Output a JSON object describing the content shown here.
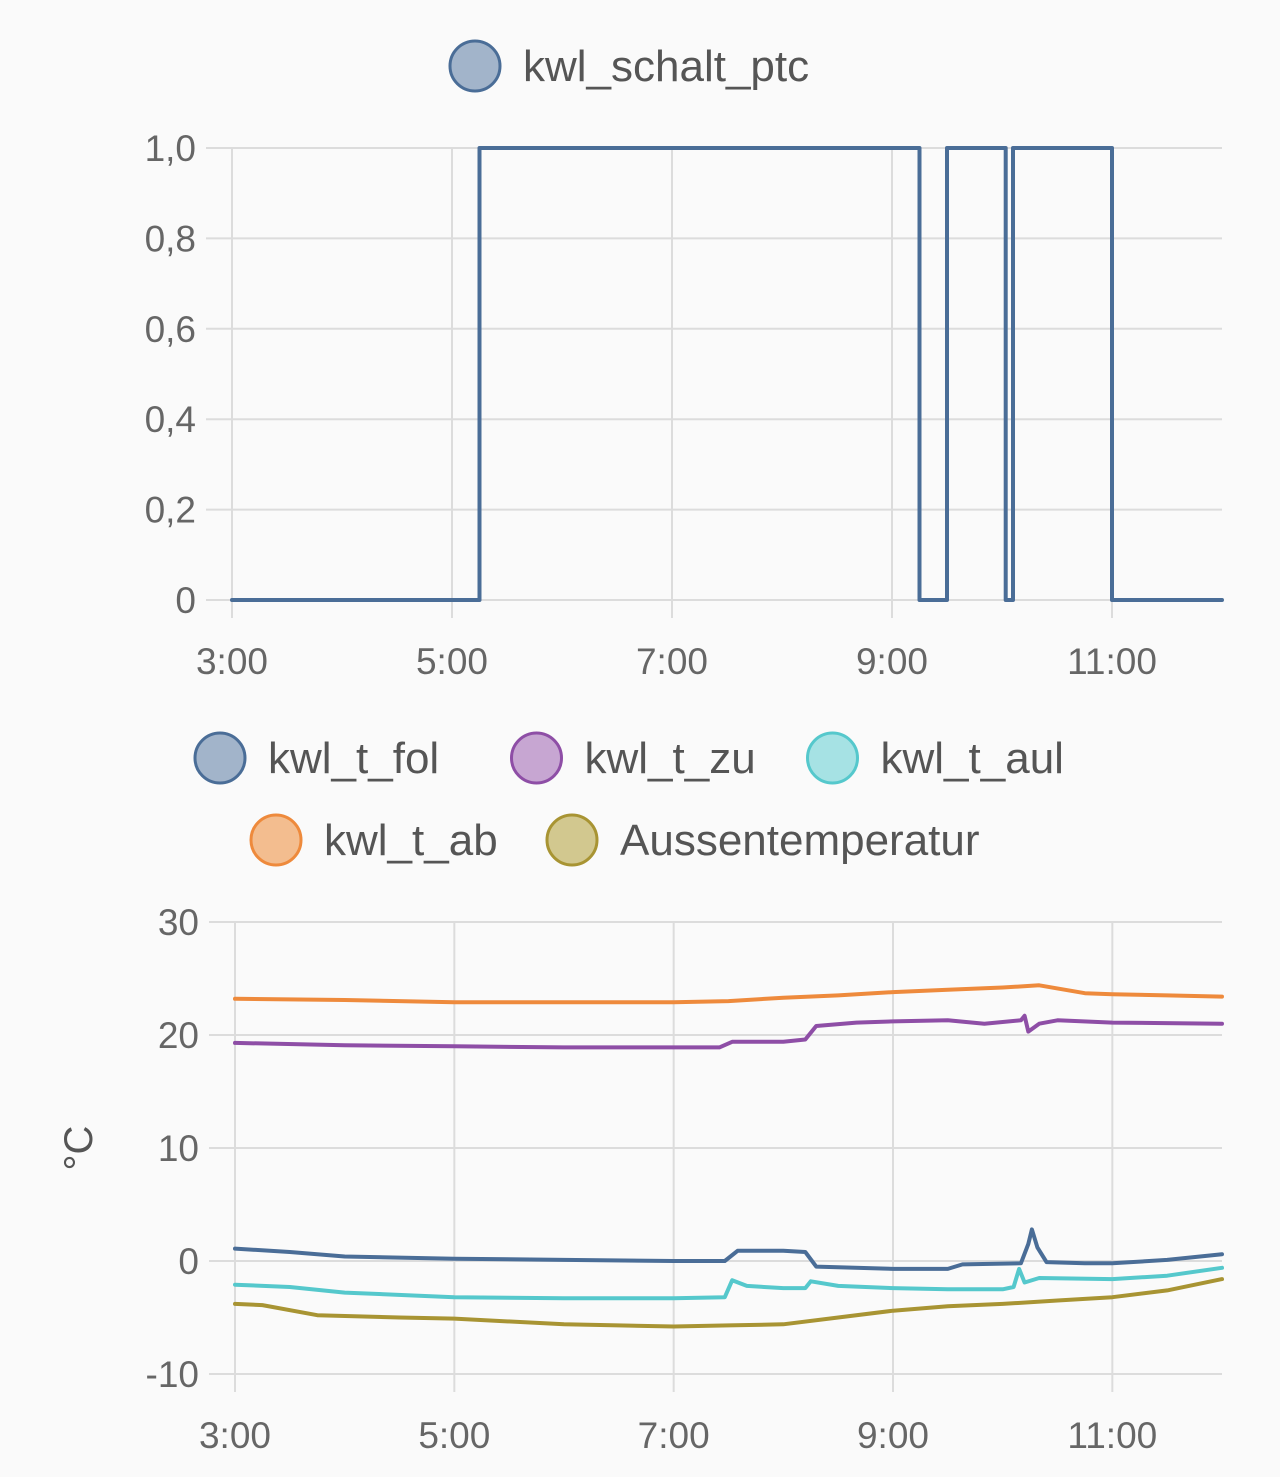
{
  "chart_data": [
    {
      "type": "line",
      "step": true,
      "legend_position": "top",
      "title": "",
      "xlabel": "",
      "ylabel": "",
      "x_range": [
        "3:00",
        "12:00"
      ],
      "ylim": [
        0,
        1
      ],
      "grid": true,
      "x_ticks": [
        "3:00",
        "5:00",
        "7:00",
        "9:00",
        "11:00"
      ],
      "y_ticks": [
        "0",
        "0,2",
        "0,4",
        "0,6",
        "0,8",
        "1,0"
      ],
      "series": [
        {
          "name": "kwl_schalt_ptc",
          "color": "#4a6d97",
          "fill": "#a2b4ca",
          "points": [
            [
              "3:00",
              0
            ],
            [
              "5:15",
              0
            ],
            [
              "5:15",
              1
            ],
            [
              "9:15",
              1
            ],
            [
              "9:15",
              0
            ],
            [
              "9:30",
              0
            ],
            [
              "9:30",
              1
            ],
            [
              "10:02",
              1
            ],
            [
              "10:02",
              0
            ],
            [
              "10:06",
              0
            ],
            [
              "10:06",
              1
            ],
            [
              "11:00",
              1
            ],
            [
              "11:00",
              0
            ],
            [
              "12:00",
              0
            ]
          ]
        }
      ]
    },
    {
      "type": "line",
      "legend_position": "top",
      "title": "",
      "xlabel": "",
      "ylabel": "°C",
      "x_range": [
        "3:00",
        "12:00"
      ],
      "ylim": [
        -10,
        30
      ],
      "grid": true,
      "x_ticks": [
        "3:00",
        "5:00",
        "7:00",
        "9:00",
        "11:00"
      ],
      "y_ticks": [
        "-10",
        "0",
        "10",
        "20",
        "30"
      ],
      "series": [
        {
          "name": "kwl_t_fol",
          "color": "#4a6d97",
          "fill": "#a2b4ca",
          "points": [
            [
              "3:00",
              1.1
            ],
            [
              "3:30",
              0.8
            ],
            [
              "4:00",
              0.4
            ],
            [
              "5:00",
              0.2
            ],
            [
              "6:00",
              0.1
            ],
            [
              "7:00",
              0.0
            ],
            [
              "7:28",
              0.0
            ],
            [
              "7:35",
              0.9
            ],
            [
              "8:00",
              0.9
            ],
            [
              "8:12",
              0.8
            ],
            [
              "8:18",
              -0.5
            ],
            [
              "9:00",
              -0.7
            ],
            [
              "9:30",
              -0.7
            ],
            [
              "9:38",
              -0.3
            ],
            [
              "10:10",
              -0.2
            ],
            [
              "10:14",
              1.5
            ],
            [
              "10:16",
              2.8
            ],
            [
              "10:19",
              1.2
            ],
            [
              "10:24",
              -0.1
            ],
            [
              "10:45",
              -0.2
            ],
            [
              "11:00",
              -0.2
            ],
            [
              "11:30",
              0.1
            ],
            [
              "12:00",
              0.6
            ]
          ]
        },
        {
          "name": "kwl_t_zu",
          "color": "#8e4ea6",
          "fill": "#c7a6d2",
          "points": [
            [
              "3:00",
              19.3
            ],
            [
              "4:00",
              19.1
            ],
            [
              "5:00",
              19.0
            ],
            [
              "6:00",
              18.9
            ],
            [
              "7:00",
              18.9
            ],
            [
              "7:25",
              18.9
            ],
            [
              "7:32",
              19.4
            ],
            [
              "8:00",
              19.4
            ],
            [
              "8:12",
              19.6
            ],
            [
              "8:18",
              20.8
            ],
            [
              "8:40",
              21.1
            ],
            [
              "9:00",
              21.2
            ],
            [
              "9:30",
              21.3
            ],
            [
              "9:50",
              21.0
            ],
            [
              "10:10",
              21.3
            ],
            [
              "10:12",
              21.7
            ],
            [
              "10:14",
              20.3
            ],
            [
              "10:20",
              21.0
            ],
            [
              "10:30",
              21.3
            ],
            [
              "11:00",
              21.1
            ],
            [
              "12:00",
              21.0
            ]
          ]
        },
        {
          "name": "kwl_t_aul",
          "color": "#55c8cc",
          "fill": "#a6e2e4",
          "points": [
            [
              "3:00",
              -2.1
            ],
            [
              "3:30",
              -2.3
            ],
            [
              "4:00",
              -2.8
            ],
            [
              "5:00",
              -3.2
            ],
            [
              "6:00",
              -3.3
            ],
            [
              "7:00",
              -3.3
            ],
            [
              "7:28",
              -3.2
            ],
            [
              "7:32",
              -1.7
            ],
            [
              "7:40",
              -2.2
            ],
            [
              "8:00",
              -2.4
            ],
            [
              "8:12",
              -2.4
            ],
            [
              "8:15",
              -1.8
            ],
            [
              "8:30",
              -2.2
            ],
            [
              "9:00",
              -2.4
            ],
            [
              "9:30",
              -2.5
            ],
            [
              "10:00",
              -2.5
            ],
            [
              "10:06",
              -2.3
            ],
            [
              "10:09",
              -0.7
            ],
            [
              "10:12",
              -1.9
            ],
            [
              "10:20",
              -1.5
            ],
            [
              "11:00",
              -1.6
            ],
            [
              "11:30",
              -1.3
            ],
            [
              "12:00",
              -0.6
            ]
          ]
        },
        {
          "name": "kwl_t_ab",
          "color": "#ee8a3c",
          "fill": "#f3bd8f",
          "points": [
            [
              "3:00",
              23.2
            ],
            [
              "4:00",
              23.1
            ],
            [
              "5:00",
              22.9
            ],
            [
              "6:00",
              22.9
            ],
            [
              "7:00",
              22.9
            ],
            [
              "7:30",
              23.0
            ],
            [
              "8:00",
              23.3
            ],
            [
              "8:30",
              23.5
            ],
            [
              "9:00",
              23.8
            ],
            [
              "9:30",
              24.0
            ],
            [
              "10:00",
              24.2
            ],
            [
              "10:20",
              24.4
            ],
            [
              "10:45",
              23.7
            ],
            [
              "11:00",
              23.6
            ],
            [
              "11:30",
              23.5
            ],
            [
              "12:00",
              23.4
            ]
          ]
        },
        {
          "name": "Aussentemperatur",
          "color": "#a89433",
          "fill": "#d2c88f",
          "points": [
            [
              "3:00",
              -3.8
            ],
            [
              "3:15",
              -3.9
            ],
            [
              "3:45",
              -4.8
            ],
            [
              "4:30",
              -5.0
            ],
            [
              "5:00",
              -5.1
            ],
            [
              "6:00",
              -5.6
            ],
            [
              "7:00",
              -5.8
            ],
            [
              "7:30",
              -5.7
            ],
            [
              "8:00",
              -5.6
            ],
            [
              "8:30",
              -5.0
            ],
            [
              "9:00",
              -4.4
            ],
            [
              "9:30",
              -4.0
            ],
            [
              "10:00",
              -3.8
            ],
            [
              "10:30",
              -3.5
            ],
            [
              "11:00",
              -3.2
            ],
            [
              "11:30",
              -2.6
            ],
            [
              "12:00",
              -1.6
            ]
          ]
        }
      ]
    }
  ]
}
